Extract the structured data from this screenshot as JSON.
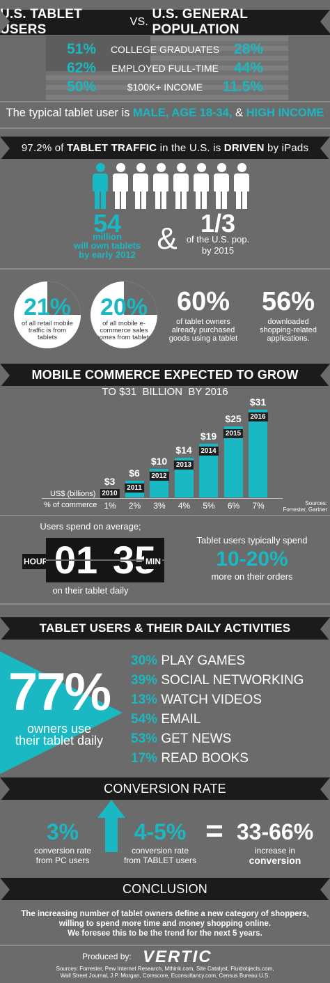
{
  "title_banner": {
    "left": "U.S. TABLET USERS",
    "vs": "VS.",
    "right": "U.S. GENERAL POPULATION"
  },
  "comparison": [
    {
      "tablet": "51%",
      "label": "COLLEGE GRADUATES",
      "general": "28%"
    },
    {
      "tablet": "62%",
      "label": "EMPLOYED FULL-TIME",
      "general": "44%"
    },
    {
      "tablet": "50%",
      "label": "$100K+ INCOME",
      "general": "11.5%"
    }
  ],
  "typical": {
    "prefix": "The typical tablet user is ",
    "male": "MALE, AGE 18-34,",
    "amp": " & ",
    "income": "HIGH INCOME"
  },
  "ipad_banner": {
    "pre": "97.2% of ",
    "b1": "TABLET TRAFFIC",
    "mid": " in the U.S. is ",
    "b2": "DRIVEN",
    "post": " by iPads"
  },
  "owners": {
    "number": "54",
    "line1": "million",
    "line2": "will own tablets",
    "line3": "by early 2012",
    "amp": "&",
    "fraction": "1/3",
    "pop1": "of the U.S. pop.",
    "pop2": "by 2015"
  },
  "circles": [
    {
      "value": "21%",
      "text": "of all retail mobile traffic is from tablets"
    },
    {
      "value": "20%",
      "text": "of all mobile e-commerce sales comes from tablets"
    }
  ],
  "stats": [
    {
      "value": "60%",
      "l1": "of tablet owners",
      "l2": "already purchased",
      "l3": "goods using a tablet"
    },
    {
      "value": "56%",
      "l1": "downloaded",
      "l2": "shopping-related",
      "l3": "applications."
    }
  ],
  "commerce_banner": "MOBILE COMMERCE EXPECTED TO GROW",
  "commerce_sub": "TO $31  BILLION  BY 2016",
  "chart_data": {
    "type": "bar",
    "title": "TO $31  BILLION  BY 2016",
    "categories": [
      "2010",
      "2011",
      "2012",
      "2013",
      "2014",
      "2015",
      "2016"
    ],
    "values": [
      3,
      6,
      10,
      14,
      19,
      25,
      31
    ],
    "value_labels": [
      "$3",
      "$6",
      "$10",
      "$14",
      "$19",
      "$25",
      "$31"
    ],
    "percent_of_commerce": [
      "1%",
      "2%",
      "3%",
      "4%",
      "5%",
      "6%",
      "7%"
    ],
    "xlabel": "% of commerce",
    "ylabel": "US$ (billions)",
    "sources": "Sources: Forrester, Gartner"
  },
  "chart_labels": {
    "ylabel": "US$ (billions)",
    "xlabel": "% of commerce",
    "sources1": "Sources:",
    "sources2": "Forrester, Gartner"
  },
  "time": {
    "lead": "Users spend on average;",
    "hour_label": "HOUR",
    "hours": "01",
    "minutes": "35",
    "min_label": "MIN",
    "tail": "on their tablet daily"
  },
  "spend": {
    "lead": "Tablet users typically spend",
    "value": "10-20%",
    "tail": "more on their orders"
  },
  "activities_banner": "TABLET USERS & THEIR DAILY ACTIVITIES",
  "daily": {
    "value": "77%",
    "l1": "owners use",
    "l2": "their tablet daily"
  },
  "activities": [
    {
      "pct": "30%",
      "label": "PLAY GAMES"
    },
    {
      "pct": "39%",
      "label": "SOCIAL NETWORKING"
    },
    {
      "pct": "13%",
      "label": "WATCH VIDEOS"
    },
    {
      "pct": "54%",
      "label": "EMAIL"
    },
    {
      "pct": "53%",
      "label": "GET NEWS"
    },
    {
      "pct": "17%",
      "label": "READ BOOKS"
    }
  ],
  "conversion_banner": "CONVERSION RATE",
  "conversion": {
    "pc_value": "3%",
    "pc_l1": "conversion rate",
    "pc_l2": "from PC users",
    "tab_value": "4-5%",
    "tab_l1": "conversion rate",
    "tab_l2": "from TABLET users",
    "eq": "=",
    "inc_value": "33-66%",
    "inc_l1": "increase in",
    "inc_l2": "conversion"
  },
  "conclusion_banner": "CONCLUSION",
  "conclusion": {
    "l1": "The increasing number of tablet owners define a new category of shoppers,",
    "l2": "willing to spend more time and money shopping online.",
    "l3": "We foresee this to be the trend for the next 5 years."
  },
  "footer": {
    "produced": "Produced by:",
    "brand": "VERTIC",
    "src1": "Sources: Forrester, Pew Internet Research, Mthink.com, Site Catalyst, Fluidobjects.com,",
    "src2": "Wall Street Journal, J.P. Morgan, Comscore, Econsultancy.com, Census Bureau U.S."
  },
  "colors": {
    "accent": "#19b8c2",
    "background": "#6b6b6b",
    "banner": "#1b1b1b"
  }
}
